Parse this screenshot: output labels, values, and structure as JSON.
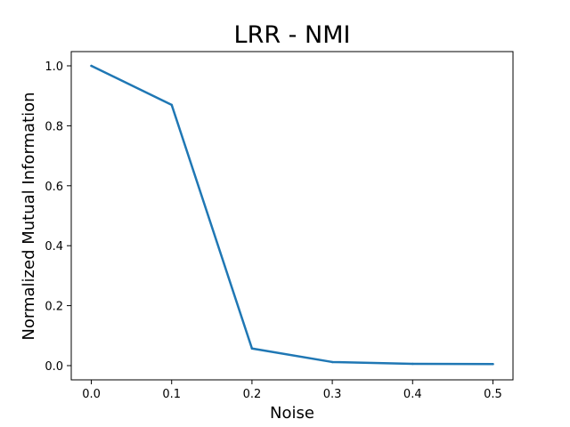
{
  "chart_data": {
    "type": "line",
    "title": "LRR - NMI",
    "xlabel": "Noise",
    "ylabel": "Normalized Mutual Information",
    "x": [
      0.0,
      0.1,
      0.2,
      0.3,
      0.4,
      0.5
    ],
    "series": [
      {
        "name": "NMI",
        "color": "#1f77b4",
        "values": [
          1.0,
          0.87,
          0.057,
          0.012,
          0.006,
          0.005
        ]
      }
    ],
    "xticks": [
      0.0,
      0.1,
      0.2,
      0.3,
      0.4,
      0.5
    ],
    "xtick_labels": [
      "0.0",
      "0.1",
      "0.2",
      "0.3",
      "0.4",
      "0.5"
    ],
    "yticks": [
      0.0,
      0.2,
      0.4,
      0.6,
      0.8,
      1.0
    ],
    "ytick_labels": [
      "0.0",
      "0.2",
      "0.4",
      "0.6",
      "0.8",
      "1.0"
    ],
    "xlim": [
      -0.025,
      0.525
    ],
    "ylim": [
      -0.0475,
      1.0475
    ],
    "grid": false,
    "legend": "none"
  }
}
